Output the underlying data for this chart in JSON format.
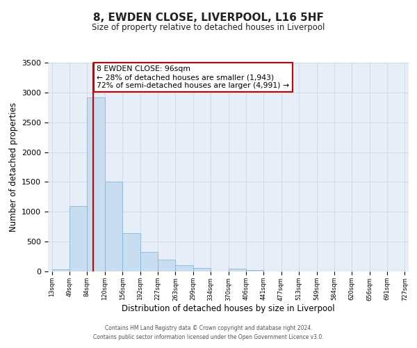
{
  "title": "8, EWDEN CLOSE, LIVERPOOL, L16 5HF",
  "subtitle": "Size of property relative to detached houses in Liverpool",
  "xlabel": "Distribution of detached houses by size in Liverpool",
  "ylabel": "Number of detached properties",
  "bar_color": "#c9ddf0",
  "bar_edge_color": "#7aafd4",
  "grid_color": "#d0dcea",
  "background_color": "#e8eef8",
  "vline_x": 96,
  "vline_color": "#cc0000",
  "annotation_box_color": "#ffffff",
  "annotation_border_color": "#cc0000",
  "annotation_text_line1": "8 EWDEN CLOSE: 96sqm",
  "annotation_text_line2": "← 28% of detached houses are smaller (1,943)",
  "annotation_text_line3": "72% of semi-detached houses are larger (4,991) →",
  "bin_edges": [
    13,
    49,
    84,
    120,
    156,
    192,
    227,
    263,
    299,
    334,
    370,
    406,
    441,
    477,
    513,
    549,
    584,
    620,
    656,
    691,
    727
  ],
  "bar_heights": [
    40,
    1100,
    2920,
    1500,
    640,
    330,
    195,
    100,
    55,
    5,
    45,
    20,
    0,
    0,
    0,
    0,
    0,
    0,
    0,
    0
  ],
  "ylim": [
    0,
    3500
  ],
  "yticks": [
    0,
    500,
    1000,
    1500,
    2000,
    2500,
    3000,
    3500
  ],
  "footer_line1": "Contains HM Land Registry data © Crown copyright and database right 2024.",
  "footer_line2": "Contains public sector information licensed under the Open Government Licence v3.0."
}
